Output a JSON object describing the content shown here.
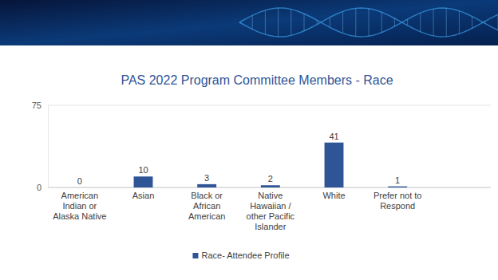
{
  "chart_data": {
    "type": "bar",
    "title": "PAS 2022 Program Committee Members - Race",
    "categories": [
      "American Indian or Alaska Native",
      "Asian",
      "Black or African American",
      "Native Hawaiian / other Pacific Islander",
      "White",
      "Prefer not to Respond"
    ],
    "series": [
      {
        "name": "Race- Attendee Profile",
        "color": "#2f5597",
        "values": [
          0,
          10,
          3,
          2,
          41,
          1
        ]
      }
    ],
    "ylim": [
      0,
      75
    ],
    "yticks": [
      0,
      75
    ],
    "grid": true,
    "data_labels": true,
    "legend": "bottom"
  }
}
